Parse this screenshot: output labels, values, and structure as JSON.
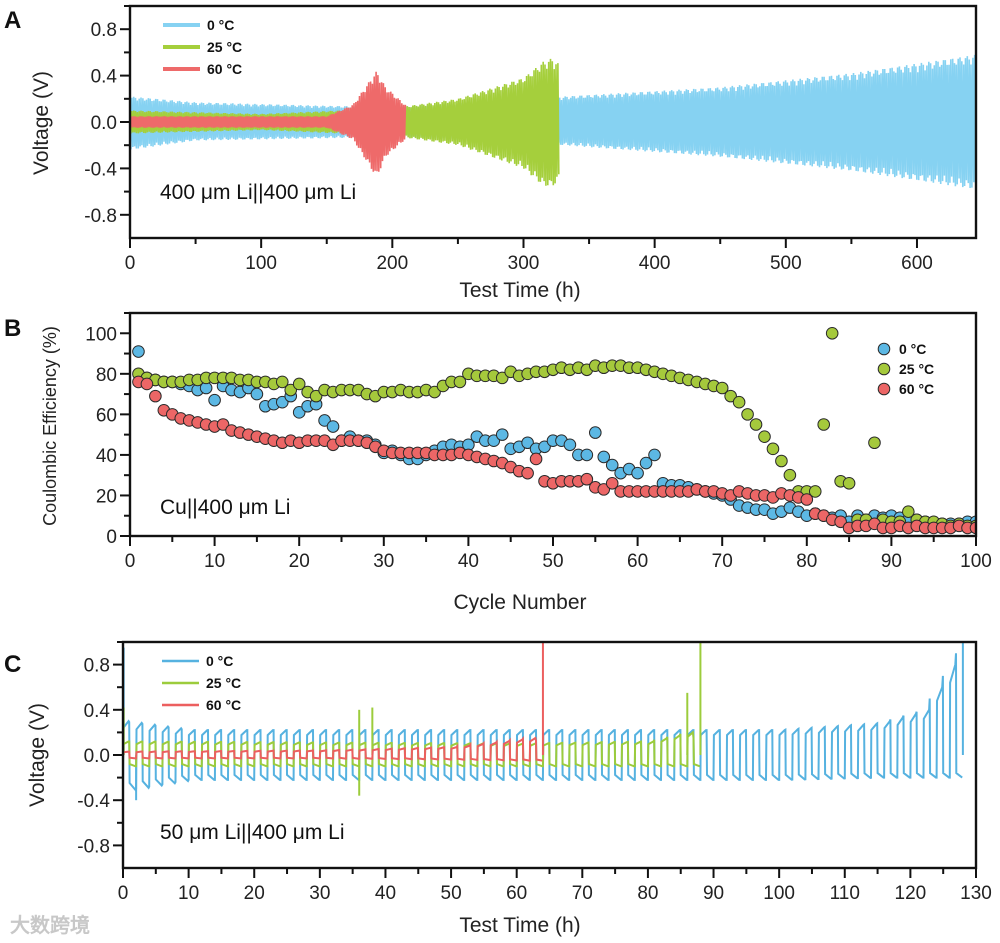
{
  "watermark": "大数跨境",
  "chart_data": [
    {
      "panel": "A",
      "type": "line",
      "title": "",
      "annotation": "400 μm Li||400 μm Li",
      "xlabel": "Test Time (h)",
      "ylabel": "Voltage (V)",
      "xlim": [
        0,
        645
      ],
      "ylim": [
        -1.0,
        1.0
      ],
      "xticks": [
        0,
        100,
        200,
        300,
        400,
        500,
        600
      ],
      "xminor": 50,
      "yticks": [
        -0.8,
        -0.4,
        0.0,
        0.4,
        0.8
      ],
      "yminor": 0.2,
      "ytick_labels": [
        "-0.8",
        "-0.4",
        "0.0",
        "0.4",
        "0.8"
      ],
      "legend_position": "top-left",
      "oscillation_period_h": 1.4,
      "series": [
        {
          "name": "0 °C",
          "color": "#86d2f2",
          "end": 645,
          "envelope": [
            [
              0,
              0.22,
              -0.24
            ],
            [
              50,
              0.17,
              -0.16
            ],
            [
              150,
              0.14,
              -0.14
            ],
            [
              200,
              0.13,
              -0.13
            ],
            [
              330,
              0.22,
              -0.2
            ],
            [
              450,
              0.3,
              -0.3
            ],
            [
              550,
              0.42,
              -0.42
            ],
            [
              645,
              0.58,
              -0.58
            ]
          ]
        },
        {
          "name": "25 °C",
          "color": "#a5cf3c",
          "end": 327,
          "envelope": [
            [
              0,
              0.1,
              -0.1
            ],
            [
              100,
              0.07,
              -0.07
            ],
            [
              200,
              0.12,
              -0.12
            ],
            [
              250,
              0.2,
              -0.2
            ],
            [
              300,
              0.38,
              -0.4
            ],
            [
              315,
              0.52,
              -0.55
            ],
            [
              322,
              0.55,
              -0.56
            ],
            [
              327,
              0.5,
              -0.5
            ]
          ]
        },
        {
          "name": "60 °C",
          "color": "#ee6a6a",
          "end": 210,
          "envelope": [
            [
              0,
              0.05,
              -0.05
            ],
            [
              150,
              0.05,
              -0.05
            ],
            [
              170,
              0.15,
              -0.15
            ],
            [
              188,
              0.44,
              -0.48
            ],
            [
              195,
              0.3,
              -0.3
            ],
            [
              210,
              0.15,
              -0.15
            ]
          ]
        }
      ]
    },
    {
      "panel": "B",
      "type": "scatter",
      "title": "",
      "annotation": "Cu||400 μm Li",
      "xlabel": "Cycle Number",
      "ylabel": "Coulombic Efficiency (%)",
      "xlim": [
        0,
        100
      ],
      "ylim": [
        0,
        110
      ],
      "xticks": [
        0,
        10,
        20,
        30,
        40,
        50,
        60,
        70,
        80,
        90,
        100
      ],
      "xminor": 5,
      "yticks": [
        0,
        20,
        40,
        60,
        80,
        100
      ],
      "yminor": 10,
      "legend_position": "top-right",
      "series": [
        {
          "name": "0 °C",
          "color": "#5cb8e4",
          "values": [
            91,
            78,
            77,
            76,
            76,
            75,
            74,
            72,
            73,
            67,
            74,
            72,
            71,
            73,
            70,
            64,
            65,
            66,
            69,
            61,
            64,
            65,
            57,
            54,
            47,
            49,
            47,
            47,
            45,
            41,
            42,
            40,
            38,
            38,
            40,
            42,
            44,
            45,
            44,
            45,
            49,
            47,
            47,
            50,
            43,
            44,
            46,
            43,
            44,
            47,
            47,
            45,
            40,
            40,
            51,
            39,
            35,
            31,
            33,
            31,
            36,
            40,
            26,
            25,
            25,
            24,
            23,
            22,
            21,
            20,
            18,
            15,
            14,
            13,
            13,
            11,
            12,
            14,
            12,
            10,
            11,
            10,
            9,
            10,
            7,
            10,
            8,
            10,
            9,
            10,
            9,
            8,
            8,
            7,
            6,
            6,
            6,
            6,
            7,
            7
          ]
        },
        {
          "name": "25 °C",
          "color": "#a5c93c",
          "values": [
            80,
            78,
            77,
            76,
            76,
            76,
            77,
            77,
            78,
            78,
            78,
            78,
            77,
            77,
            76,
            76,
            75,
            76,
            72,
            75,
            71,
            69,
            72,
            71,
            72,
            72,
            72,
            70,
            69,
            71,
            71,
            72,
            71,
            71,
            72,
            71,
            74,
            76,
            76,
            80,
            79,
            79,
            79,
            78,
            81,
            79,
            80,
            81,
            81,
            82,
            83,
            82,
            83,
            82,
            84,
            83,
            84,
            84,
            83,
            83,
            82,
            81,
            80,
            79,
            78,
            77,
            76,
            75,
            74,
            73,
            69,
            66,
            60,
            55,
            49,
            43,
            37,
            30,
            22,
            22,
            22,
            55,
            100,
            27,
            26,
            8,
            8,
            46,
            8,
            7,
            7,
            12,
            8,
            7,
            7,
            6,
            5,
            6,
            5,
            5
          ]
        },
        {
          "name": "60 °C",
          "color": "#ec6666",
          "values": [
            76,
            75,
            69,
            62,
            60,
            58,
            57,
            56,
            55,
            54,
            55,
            52,
            51,
            50,
            49,
            48,
            47,
            46,
            47,
            46,
            47,
            47,
            47,
            45,
            47,
            47,
            47,
            46,
            44,
            42,
            41,
            41,
            41,
            41,
            41,
            40,
            40,
            40,
            41,
            40,
            39,
            38,
            37,
            36,
            34,
            32,
            31,
            38,
            27,
            26,
            27,
            27,
            27,
            28,
            24,
            23,
            26,
            22,
            22,
            22,
            22,
            22,
            22,
            22,
            22,
            22,
            23,
            22,
            22,
            21,
            20,
            22,
            21,
            20,
            20,
            19,
            21,
            20,
            19,
            18,
            11,
            10,
            8,
            7,
            4,
            5,
            5,
            6,
            4,
            4,
            5,
            4,
            5,
            4,
            4,
            4,
            4,
            5,
            4,
            4
          ]
        }
      ]
    },
    {
      "panel": "C",
      "type": "line",
      "title": "",
      "annotation": "50 μm Li||400 μm Li",
      "xlabel": "Test Time (h)",
      "ylabel": "Voltage (V)",
      "xlim": [
        0,
        130
      ],
      "ylim": [
        -1.0,
        1.0
      ],
      "xticks": [
        0,
        10,
        20,
        30,
        40,
        50,
        60,
        70,
        80,
        90,
        100,
        110,
        120,
        130
      ],
      "xminor": 5,
      "yticks": [
        -0.8,
        -0.4,
        0.0,
        0.4,
        0.8
      ],
      "yminor": 0.2,
      "ytick_labels": [
        "-0.8",
        "-0.4",
        "0.0",
        "0.4",
        "0.8"
      ],
      "legend_position": "top-left",
      "cycle_period_h": 2.0,
      "series": [
        {
          "name": "0 °C",
          "color": "#56b2e0",
          "end": 128,
          "envelope": [
            [
              0,
              0.3,
              -0.32
            ],
            [
              10,
              0.22,
              -0.22
            ],
            [
              100,
              0.22,
              -0.22
            ],
            [
              115,
              0.28,
              -0.2
            ],
            [
              122,
              0.4,
              -0.2
            ],
            [
              127,
              0.9,
              -0.2
            ],
            [
              128,
              0.2,
              -0.2
            ]
          ],
          "spikes": [
            [
              0.1,
              0.95
            ],
            [
              2,
              -0.4
            ],
            [
              128,
              1.0
            ]
          ]
        },
        {
          "name": "25 °C",
          "color": "#9ccc3c",
          "end": 88,
          "envelope": [
            [
              0,
              0.12,
              -0.1
            ],
            [
              60,
              0.1,
              -0.1
            ],
            [
              80,
              0.12,
              -0.1
            ],
            [
              86,
              0.2,
              -0.1
            ],
            [
              88,
              0.1,
              -0.1
            ]
          ],
          "spikes": [
            [
              0.1,
              0.42
            ],
            [
              36,
              0.4
            ],
            [
              36,
              -0.36
            ],
            [
              38,
              0.42
            ],
            [
              86,
              0.55
            ],
            [
              88,
              1.0
            ]
          ]
        },
        {
          "name": "60 °C",
          "color": "#ec5f5f",
          "end": 64,
          "envelope": [
            [
              0,
              0.03,
              -0.03
            ],
            [
              30,
              0.04,
              -0.03
            ],
            [
              50,
              0.07,
              -0.04
            ],
            [
              62,
              0.15,
              -0.05
            ],
            [
              64,
              0.1,
              -0.05
            ]
          ],
          "spikes": [
            [
              64,
              1.0
            ]
          ]
        }
      ]
    }
  ]
}
